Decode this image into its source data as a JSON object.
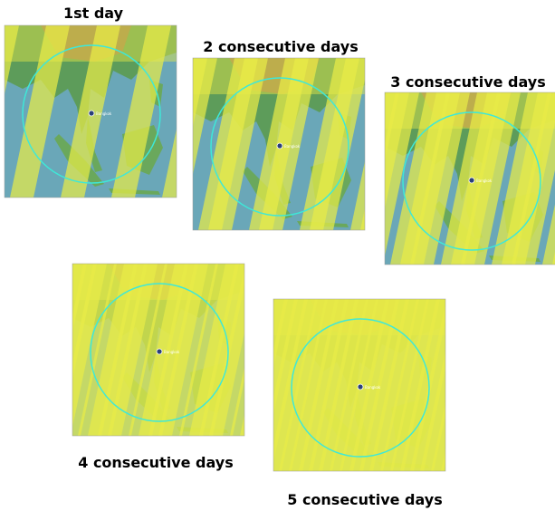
{
  "panels": [
    {
      "title": "1st day",
      "city_label": "Bangkok"
    },
    {
      "title": "2 consecutive days",
      "city_label": "Bangkok"
    },
    {
      "title": "3 consecutive days",
      "city_label": "Bangkok"
    },
    {
      "title": "4 consecutive days",
      "city_label": "Bangkok"
    },
    {
      "title": "5 consecutive days",
      "city_label": "Bangkok"
    }
  ]
}
